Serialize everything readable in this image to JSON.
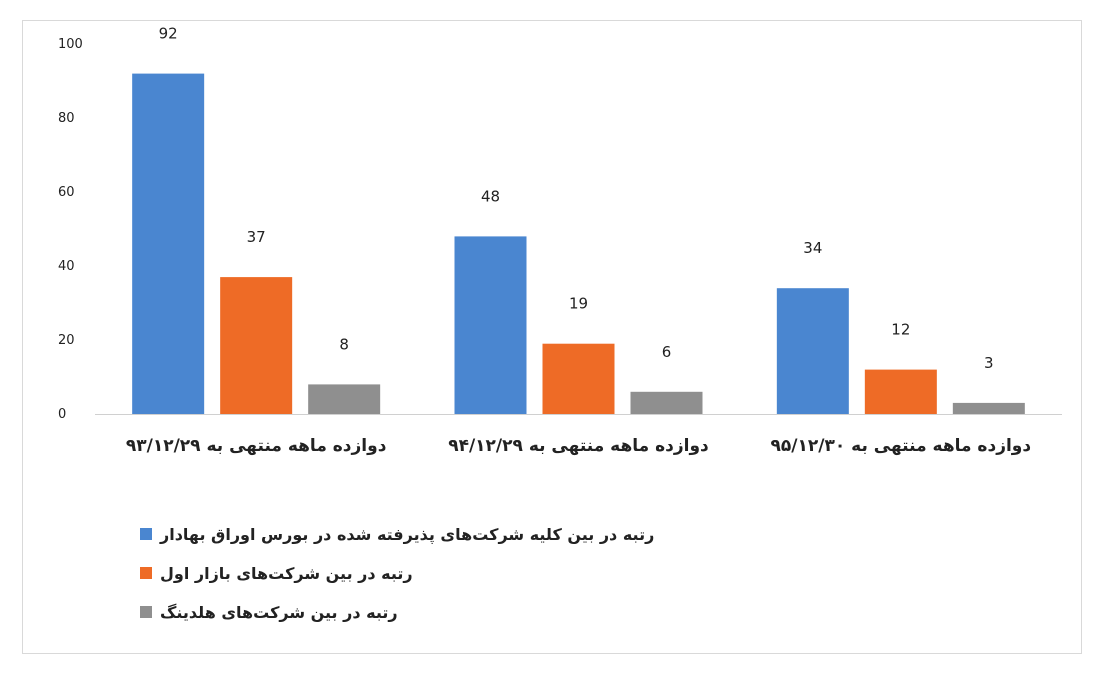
{
  "chart_data": {
    "type": "bar",
    "title": "",
    "xlabel": "",
    "ylabel": "",
    "ylim": [
      0,
      100
    ],
    "yticks": [
      "0",
      "20",
      "40",
      "60",
      "80",
      "100"
    ],
    "grid": false,
    "legend_position": "bottom",
    "categories": [
      "دوازده ماهه منتهی به ۹۳/۱۲/۲۹",
      "دوازده ماهه منتهی به ۹۴/۱۲/۲۹",
      "دوازده ماهه منتهی به ۹۵/۱۲/۳۰"
    ],
    "series": [
      {
        "name": "رتبه در بین کلیه شرکت‌های پذیرفته شده در بورس اوراق بهادار",
        "color": "#4a86d0",
        "values": [
          92,
          48,
          34
        ]
      },
      {
        "name": "رتبه در بین شرکت‌های بازار اول",
        "color": "#ee6b26",
        "values": [
          37,
          19,
          12
        ]
      },
      {
        "name": "رتبه در بین شرکت‌های هلدینگ",
        "color": "#8f8f8f",
        "values": [
          8,
          6,
          3
        ]
      }
    ]
  }
}
